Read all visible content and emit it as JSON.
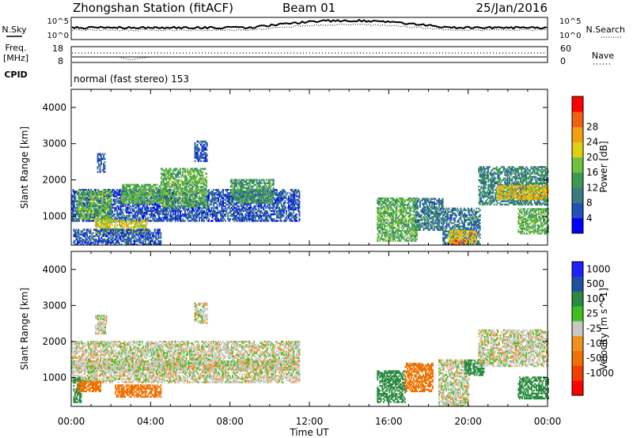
{
  "header": {
    "station": "Zhongshan Station (fitACF)",
    "beam": "Beam 01",
    "date": "25/Jan/2016"
  },
  "panels": {
    "noise": {
      "left_label": "N.Sky",
      "right_label": "N.Search",
      "left_ticks": [
        "10^5",
        "10^0"
      ],
      "right_ticks": [
        "10^5",
        "10^0"
      ]
    },
    "freq": {
      "left_label_1": "Freq.",
      "left_label_2": "[MHz]",
      "right_label": "Nave",
      "left_ticks": [
        "18",
        "8"
      ],
      "right_ticks": [
        "60",
        "0"
      ]
    },
    "cpid": {
      "label": "CPID",
      "mode_text": "normal (fast stereo) 153"
    }
  },
  "x_axis": {
    "label": "Time UT",
    "ticks": [
      "00:00",
      "04:00",
      "08:00",
      "12:00",
      "16:00",
      "20:00",
      "00:00"
    ]
  },
  "colors": {
    "power_scale": [
      "#0000ff",
      "#2050b8",
      "#3a7a80",
      "#3a9a50",
      "#70c040",
      "#e0d010",
      "#f0a010",
      "#f06010",
      "#ff0000"
    ],
    "velocity_scale": [
      "#ff0000",
      "#f04000",
      "#f07000",
      "#f09020",
      "#c8c8c0",
      "#40c020",
      "#2a8a40",
      "#2050a0",
      "#2020ff"
    ],
    "gray": "#c8c8c0"
  },
  "chart_data": [
    {
      "type": "heatmap",
      "title": "Power",
      "xlabel": "Time UT",
      "ylabel": "Slant Range [km]",
      "x_unit": "hours UT",
      "xlim": [
        0,
        24
      ],
      "ylim": [
        200,
        4500
      ],
      "yticks": [
        1000,
        2000,
        3000,
        4000
      ],
      "colorbar": {
        "label": "Power [dB]",
        "range": [
          0,
          32
        ],
        "ticks": [
          "4",
          "8",
          "12",
          "16",
          "20",
          "24",
          "28"
        ]
      },
      "regions": [
        {
          "t0": 0.0,
          "t1": 11.5,
          "r0": 850,
          "r1": 1750,
          "value": 6
        },
        {
          "t0": 0.3,
          "t1": 2.0,
          "r0": 900,
          "r1": 1700,
          "value": 15
        },
        {
          "t0": 2.5,
          "t1": 4.6,
          "r0": 1350,
          "r1": 1850,
          "value": 14
        },
        {
          "t0": 4.5,
          "t1": 6.8,
          "r0": 1250,
          "r1": 2300,
          "value": 14
        },
        {
          "t0": 8.0,
          "t1": 10.2,
          "r0": 1350,
          "r1": 2000,
          "value": 12
        },
        {
          "t0": 1.2,
          "t1": 3.8,
          "r0": 500,
          "r1": 900,
          "value": 19
        },
        {
          "t0": 0.1,
          "t1": 4.5,
          "r0": 200,
          "r1": 650,
          "value": 6
        },
        {
          "t0": 1.3,
          "t1": 1.7,
          "r0": 2200,
          "r1": 2700,
          "value": 6
        },
        {
          "t0": 6.2,
          "t1": 6.8,
          "r0": 2500,
          "r1": 3050,
          "value": 6
        },
        {
          "t0": 15.4,
          "t1": 17.4,
          "r0": 300,
          "r1": 1500,
          "value": 14
        },
        {
          "t0": 17.3,
          "t1": 18.7,
          "r0": 600,
          "r1": 1500,
          "value": 9
        },
        {
          "t0": 18.7,
          "t1": 20.6,
          "r0": 200,
          "r1": 1200,
          "value": 8
        },
        {
          "t0": 19.0,
          "t1": 20.4,
          "r0": 250,
          "r1": 600,
          "value": 21
        },
        {
          "t0": 19.2,
          "t1": 19.8,
          "r0": 200,
          "r1": 300,
          "value": 27
        },
        {
          "t0": 20.5,
          "t1": 24.0,
          "r0": 1300,
          "r1": 2350,
          "value": 10
        },
        {
          "t0": 21.4,
          "t1": 24.0,
          "r0": 1450,
          "r1": 1850,
          "value": 21
        },
        {
          "t0": 22.5,
          "t1": 24.0,
          "r0": 500,
          "r1": 1200,
          "value": 14
        }
      ]
    },
    {
      "type": "heatmap",
      "title": "Velocity",
      "xlabel": "Time UT",
      "ylabel": "Slant Range [km]",
      "x_unit": "hours UT",
      "xlim": [
        0,
        24
      ],
      "ylim": [
        200,
        4500
      ],
      "yticks": [
        1000,
        2000,
        3000,
        4000
      ],
      "colorbar": {
        "label": "Velocity [m s^-1]",
        "ticks": [
          "1000",
          "500",
          "100",
          "25",
          "-25",
          "-100",
          "-500",
          "-1000"
        ]
      },
      "regions": [
        {
          "t0": 0.0,
          "t1": 11.5,
          "r0": 850,
          "r1": 2000,
          "value": 0
        },
        {
          "t0": 0.3,
          "t1": 11.4,
          "r0": 1200,
          "r1": 1450,
          "value": 0
        },
        {
          "t0": 1.2,
          "t1": 1.8,
          "r0": 2200,
          "r1": 2700,
          "value": 0
        },
        {
          "t0": 6.2,
          "t1": 6.8,
          "r0": 2500,
          "r1": 3050,
          "value": 0
        },
        {
          "t0": 2.2,
          "t1": 4.5,
          "r0": 450,
          "r1": 800,
          "value": -300
        },
        {
          "t0": 0.1,
          "t1": 0.5,
          "r0": 300,
          "r1": 1000,
          "value": 200
        },
        {
          "t0": 0.3,
          "t1": 1.5,
          "r0": 600,
          "r1": 900,
          "value": -300
        },
        {
          "t0": 15.4,
          "t1": 16.8,
          "r0": 300,
          "r1": 1200,
          "value": 200
        },
        {
          "t0": 16.8,
          "t1": 18.2,
          "r0": 600,
          "r1": 1400,
          "value": -250
        },
        {
          "t0": 18.5,
          "t1": 20.0,
          "r0": 200,
          "r1": 1500,
          "value": 0
        },
        {
          "t0": 19.8,
          "t1": 20.8,
          "r0": 1050,
          "r1": 1500,
          "value": 300
        },
        {
          "t0": 20.5,
          "t1": 24.0,
          "r0": 1300,
          "r1": 2300,
          "value": 0
        },
        {
          "t0": 22.5,
          "t1": 24.0,
          "r0": 400,
          "r1": 1000,
          "value": 150
        }
      ]
    }
  ]
}
